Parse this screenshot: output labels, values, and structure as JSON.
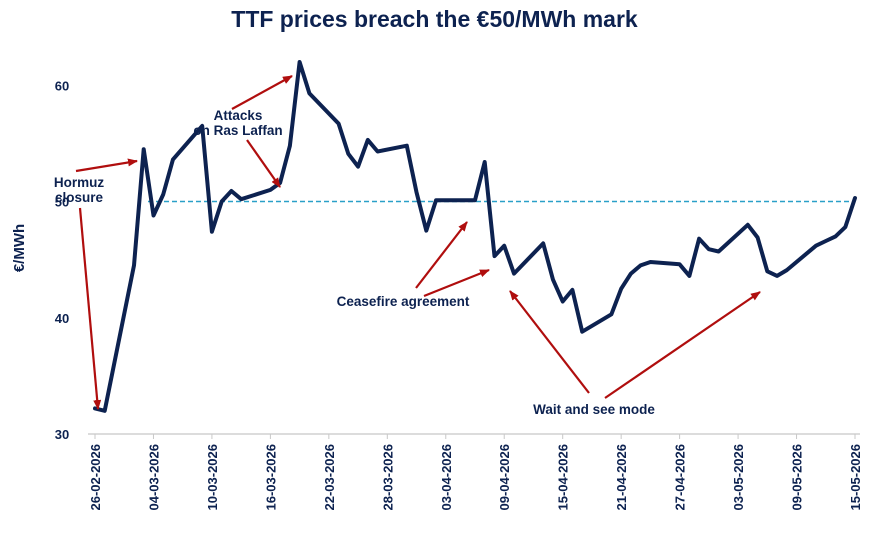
{
  "chart_data": {
    "type": "line",
    "title": "TTF prices breach the €50/MWh mark",
    "xlabel": "",
    "ylabel": "€/MWh",
    "ylim": [
      30,
      62
    ],
    "yticks": [
      30,
      40,
      50,
      60
    ],
    "grid": false,
    "line_color": "#0d2250",
    "reference_line": {
      "value": 50,
      "color": "#2aa0c8",
      "style": "dashed"
    },
    "x_tick_labels": [
      "26-02-2026",
      "04-03-2026",
      "10-03-2026",
      "16-03-2026",
      "22-03-2026",
      "28-03-2026",
      "03-04-2026",
      "09-04-2026",
      "15-04-2026",
      "21-04-2026",
      "27-04-2026",
      "03-05-2026",
      "09-05-2026",
      "15-05-2026"
    ],
    "series": [
      {
        "x": [
          "26-02-2026",
          "27-02-2026",
          "02-03-2026",
          "03-03-2026",
          "04-03-2026",
          "05-03-2026",
          "06-03-2026",
          "09-03-2026",
          "10-03-2026",
          "11-03-2026",
          "12-03-2026",
          "13-03-2026",
          "16-03-2026",
          "17-03-2026",
          "18-03-2026",
          "19-03-2026",
          "20-03-2026",
          "23-03-2026",
          "24-03-2026",
          "25-03-2026",
          "26-03-2026",
          "27-03-2026",
          "30-03-2026",
          "31-03-2026",
          "01-04-2026",
          "02-04-2026",
          "03-04-2026",
          "06-04-2026",
          "07-04-2026",
          "08-04-2026",
          "09-04-2026",
          "10-04-2026",
          "13-04-2026",
          "14-04-2026",
          "15-04-2026",
          "16-04-2026",
          "17-04-2026",
          "20-04-2026",
          "21-04-2026",
          "22-04-2026",
          "23-04-2026",
          "24-04-2026",
          "27-04-2026",
          "28-04-2026",
          "29-04-2026",
          "30-04-2026",
          "01-05-2026",
          "04-05-2026",
          "05-05-2026",
          "06-05-2026",
          "07-05-2026",
          "08-05-2026",
          "11-05-2026",
          "12-05-2026",
          "13-05-2026",
          "14-05-2026",
          "15-05-2026"
        ],
        "values": [
          32.2,
          32.0,
          44.5,
          54.5,
          48.8,
          50.6,
          53.6,
          56.5,
          47.4,
          50.0,
          50.9,
          50.2,
          51.0,
          51.6,
          54.8,
          62.0,
          59.3,
          56.7,
          54.1,
          53.0,
          55.3,
          54.3,
          54.8,
          50.8,
          47.5,
          50.1,
          50.1,
          50.1,
          53.4,
          45.3,
          46.2,
          43.8,
          46.4,
          43.3,
          41.4,
          42.4,
          38.8,
          40.3,
          42.5,
          43.8,
          44.5,
          44.8,
          44.6,
          43.6,
          46.8,
          45.9,
          45.7,
          48.0,
          46.9,
          44.0,
          43.6,
          44.1,
          46.2,
          46.6,
          47.0,
          47.8,
          50.3
        ]
      }
    ],
    "annotations": [
      {
        "lines": [
          "Hormuz",
          "closure"
        ]
      },
      {
        "lines": [
          "Attacks",
          "on Ras Laffan"
        ]
      },
      {
        "lines": [
          "Ceasefire agreement"
        ]
      },
      {
        "lines": [
          "Wait and see mode"
        ]
      }
    ]
  }
}
